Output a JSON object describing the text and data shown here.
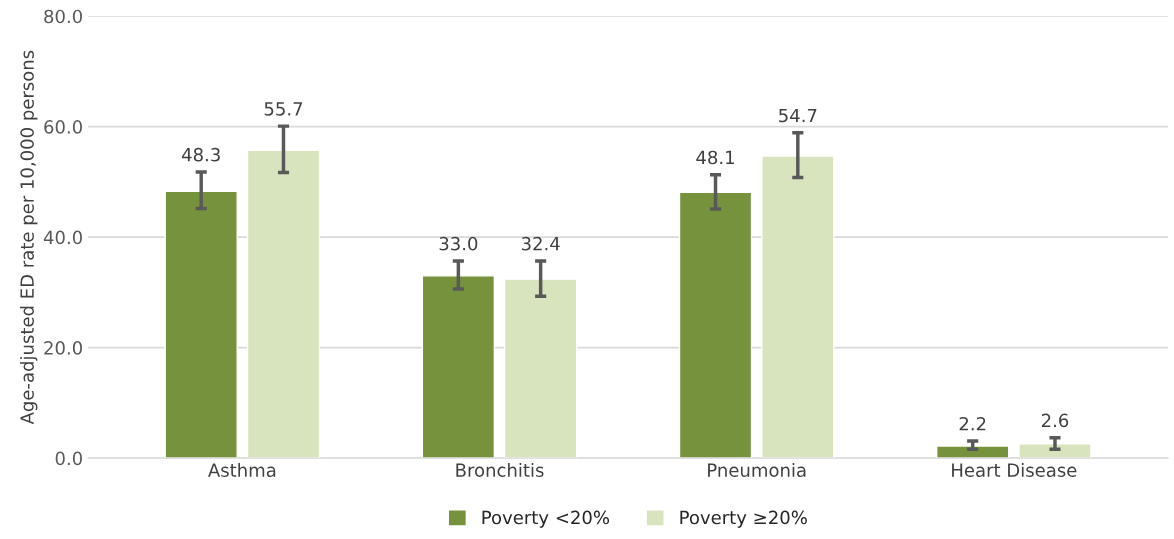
{
  "chart_data": {
    "type": "bar",
    "ylabel": "Age-adjusted ED rate per 10,000 persons",
    "categories": [
      "Asthma",
      "Bronchitis",
      "Pneumonia",
      "Heart Disease"
    ],
    "series": [
      {
        "name": "Poverty <20%",
        "color": "#76923c",
        "values": [
          48.3,
          33.0,
          48.1,
          2.2
        ],
        "value_labels": [
          "48.3",
          "33.0",
          "48.1",
          "2.2"
        ],
        "errors": [
          [
            45.2,
            51.8
          ],
          [
            30.6,
            35.7
          ],
          [
            45.1,
            51.3
          ],
          [
            1.6,
            3.1
          ]
        ]
      },
      {
        "name": "Poverty ≥20%",
        "color": "#d7e4bd",
        "values": [
          55.7,
          32.4,
          54.7,
          2.6
        ],
        "value_labels": [
          "55.7",
          "32.4",
          "54.7",
          "2.6"
        ],
        "errors": [
          [
            51.7,
            60.1
          ],
          [
            29.3,
            35.7
          ],
          [
            50.8,
            58.9
          ],
          [
            1.6,
            3.7
          ]
        ]
      }
    ],
    "ylim": [
      0,
      80
    ],
    "yticks": [
      {
        "value": 0,
        "label": "0.0"
      },
      {
        "value": 20,
        "label": "20.0"
      },
      {
        "value": 40,
        "label": "40.0"
      },
      {
        "value": 60,
        "label": "60.0"
      },
      {
        "value": 80,
        "label": "80.0"
      }
    ],
    "grid": "y",
    "legend": "bottom"
  }
}
